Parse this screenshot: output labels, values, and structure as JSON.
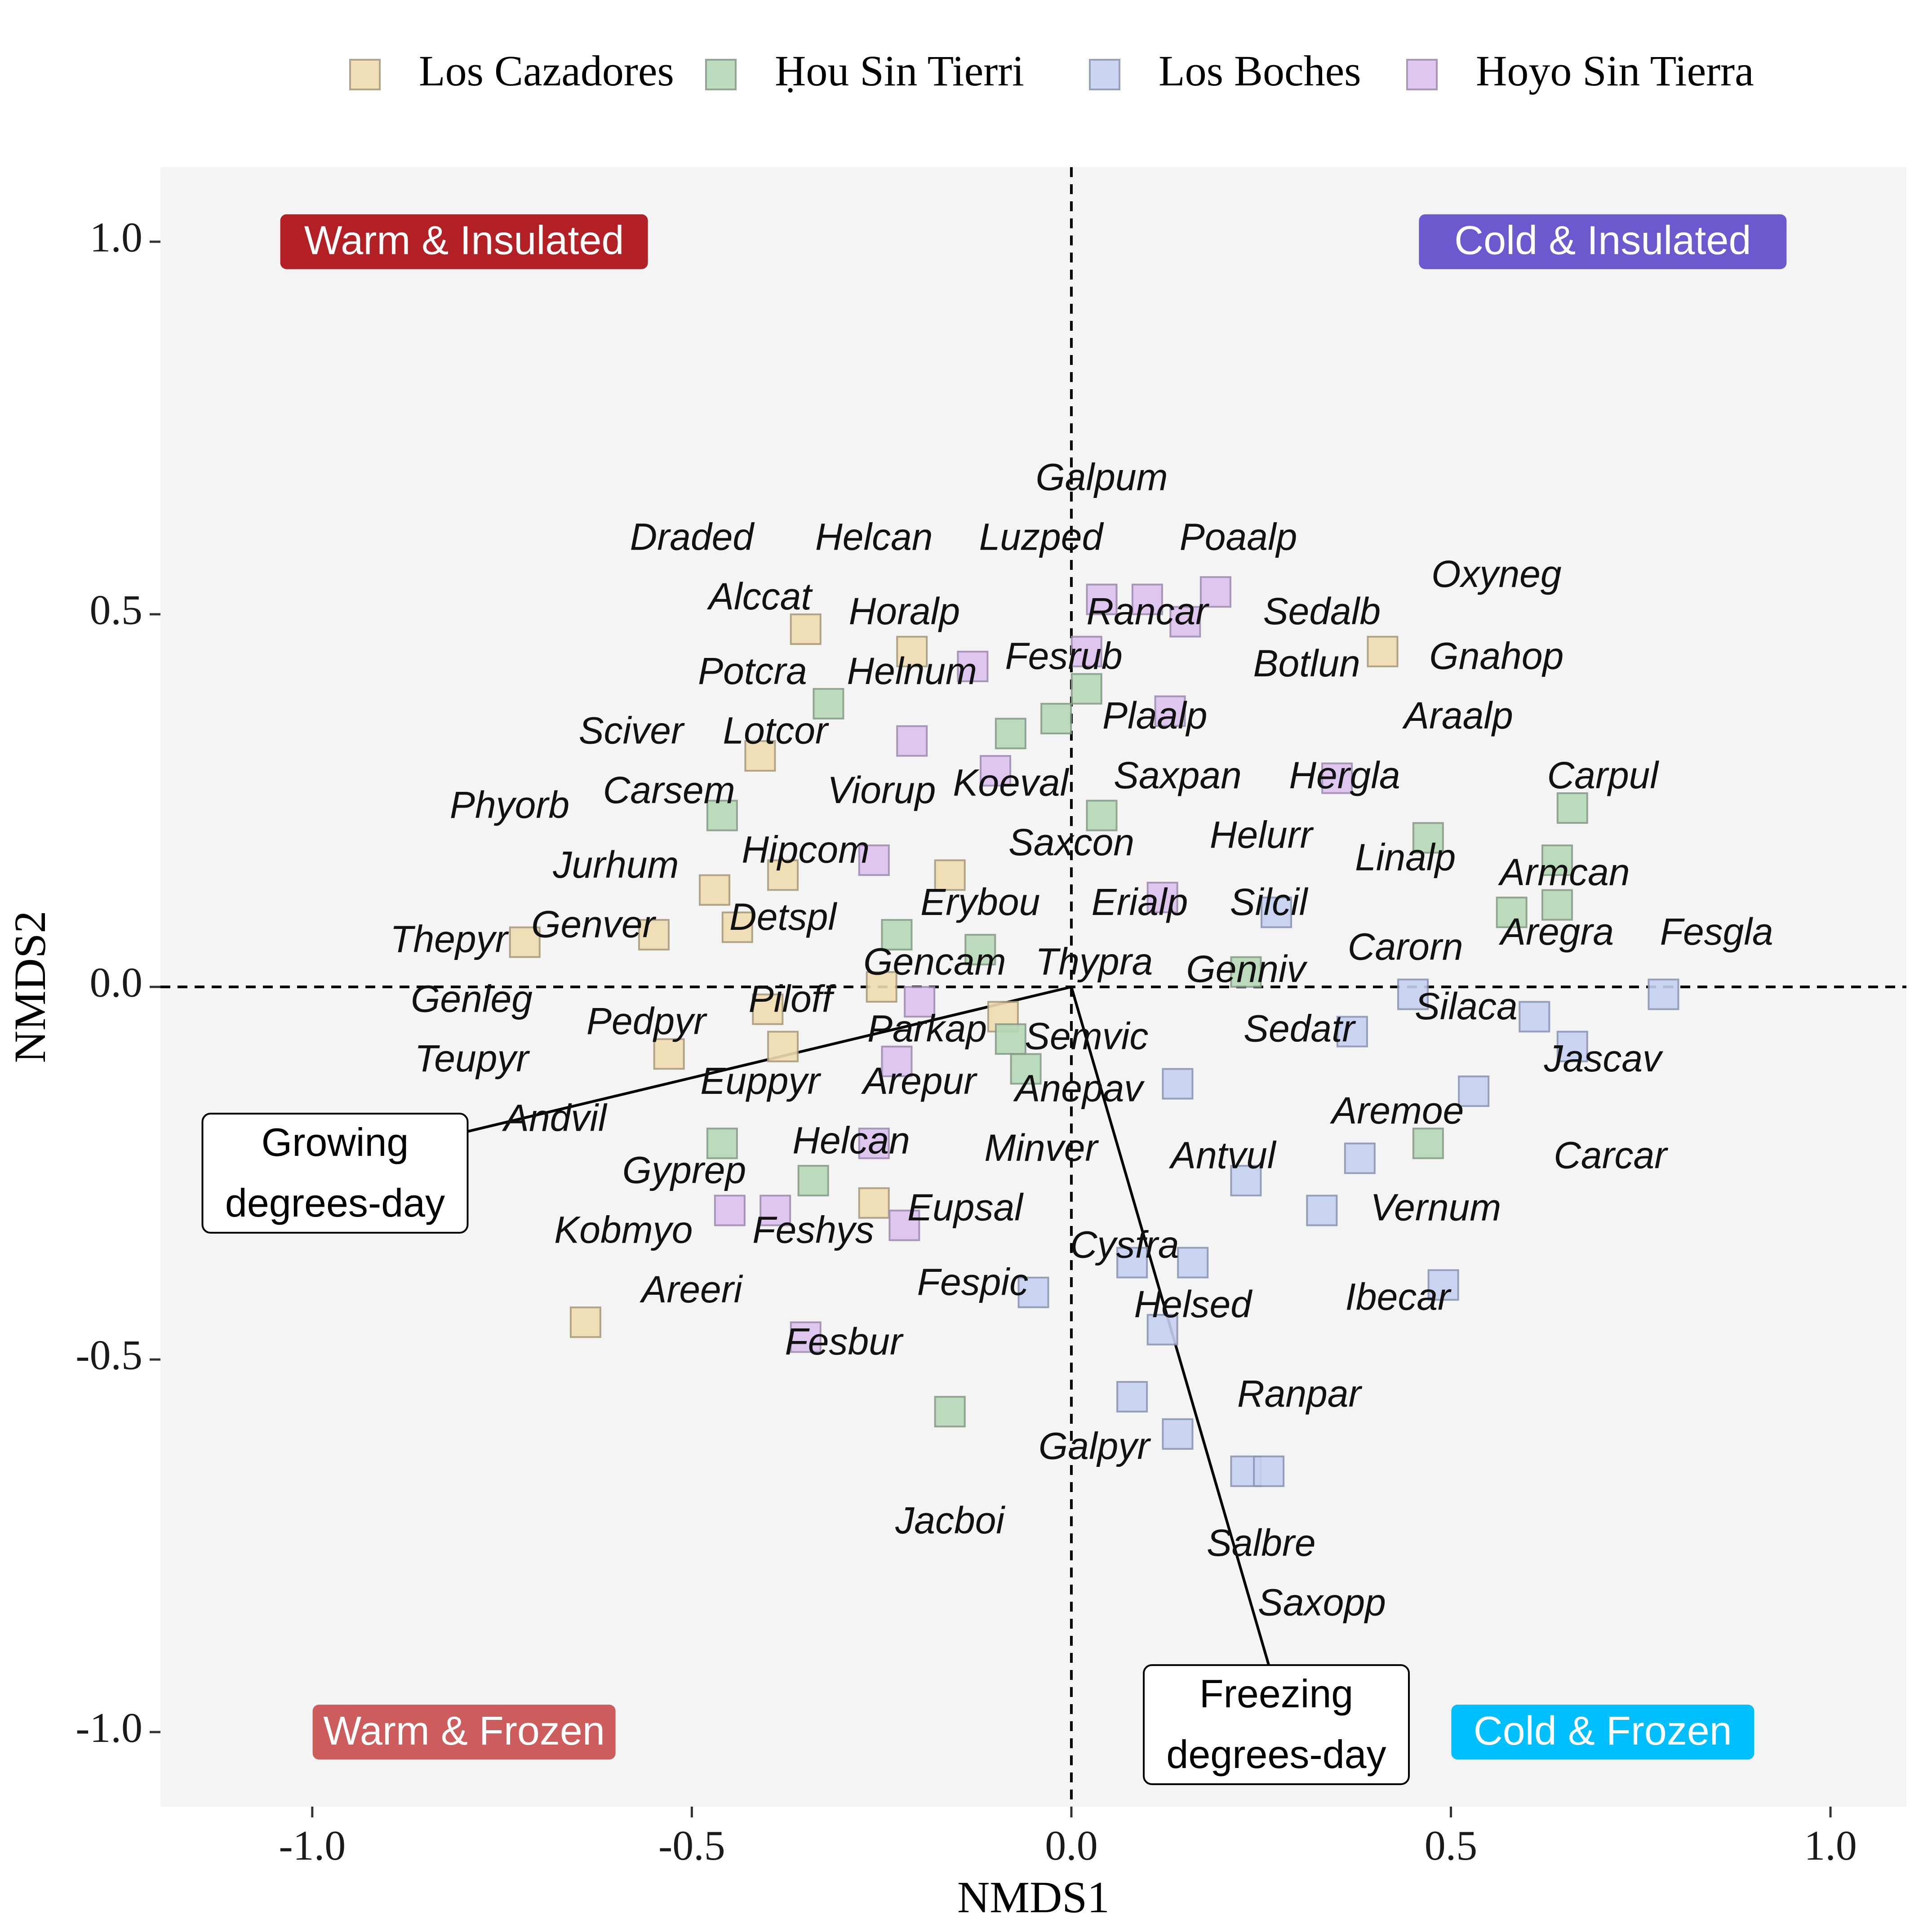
{
  "chart_data": {
    "type": "scatter",
    "xlabel": "NMDS1",
    "ylabel": "NMDS2",
    "xlim": [
      -1.2,
      1.1
    ],
    "ylim": [
      -1.1,
      1.1
    ],
    "xticks": [
      -1.0,
      -0.5,
      0.0,
      0.5,
      1.0
    ],
    "xtick_labels": [
      "-1.0",
      "-0.5",
      "0.0",
      "0.5",
      "1.0"
    ],
    "yticks": [
      -1.0,
      -0.5,
      0.0,
      0.5,
      1.0
    ],
    "ytick_labels": [
      "-1.0",
      "-0.5",
      "0.0",
      "0.5",
      "1.0"
    ],
    "grid": false,
    "legend_position": "top",
    "panel_color": "#f4f4f4",
    "series": [
      {
        "name": "Los Cazadores",
        "color": "#f0dcb0",
        "stroke": "#a89c7e",
        "points": [
          [
            -0.35,
            0.48
          ],
          [
            -0.21,
            0.45
          ],
          [
            -0.41,
            0.31
          ],
          [
            -0.47,
            0.13
          ],
          [
            -0.38,
            0.15
          ],
          [
            -0.16,
            0.15
          ],
          [
            -0.55,
            0.07
          ],
          [
            -0.44,
            0.08
          ],
          [
            -0.72,
            0.06
          ],
          [
            -0.25,
            0.0
          ],
          [
            -0.4,
            -0.03
          ],
          [
            -0.38,
            -0.08
          ],
          [
            -0.53,
            -0.09
          ],
          [
            -0.09,
            -0.04
          ],
          [
            -0.26,
            -0.29
          ],
          [
            -0.64,
            -0.45
          ],
          [
            0.41,
            0.45
          ]
        ]
      },
      {
        "name": "Ḥou Sin Tierri",
        "color": "#b6d8b6",
        "stroke": "#889c88",
        "points": [
          [
            -0.32,
            0.38
          ],
          [
            -0.08,
            0.34
          ],
          [
            -0.02,
            0.36
          ],
          [
            0.02,
            0.4
          ],
          [
            -0.46,
            0.23
          ],
          [
            0.04,
            0.23
          ],
          [
            -0.23,
            0.07
          ],
          [
            -0.12,
            0.05
          ],
          [
            -0.08,
            -0.07
          ],
          [
            -0.06,
            -0.11
          ],
          [
            -0.46,
            -0.21
          ],
          [
            -0.34,
            -0.26
          ],
          [
            -0.16,
            -0.57
          ],
          [
            0.23,
            0.02
          ],
          [
            0.47,
            0.2
          ],
          [
            0.58,
            0.1
          ],
          [
            0.64,
            0.11
          ],
          [
            0.64,
            0.17
          ],
          [
            0.66,
            0.24
          ],
          [
            0.47,
            -0.21
          ]
        ]
      },
      {
        "name": "Los Boches",
        "color": "#c6d0f0",
        "stroke": "#8c96b4",
        "points": [
          [
            0.27,
            0.1
          ],
          [
            0.45,
            -0.01
          ],
          [
            0.37,
            -0.06
          ],
          [
            0.14,
            -0.13
          ],
          [
            0.61,
            -0.04
          ],
          [
            0.66,
            -0.08
          ],
          [
            0.53,
            -0.14
          ],
          [
            0.78,
            -0.01
          ],
          [
            0.38,
            -0.23
          ],
          [
            0.23,
            -0.26
          ],
          [
            0.33,
            -0.3
          ],
          [
            0.08,
            -0.37
          ],
          [
            0.16,
            -0.37
          ],
          [
            -0.05,
            -0.41
          ],
          [
            0.49,
            -0.4
          ],
          [
            0.12,
            -0.46
          ],
          [
            0.08,
            -0.55
          ],
          [
            0.14,
            -0.6
          ],
          [
            0.23,
            -0.65
          ],
          [
            0.26,
            -0.65
          ]
        ]
      },
      {
        "name": "Hoyo Sin Tierra",
        "color": "#dcc2ee",
        "stroke": "#a08cb2",
        "points": [
          [
            0.04,
            0.52
          ],
          [
            0.1,
            0.52
          ],
          [
            0.19,
            0.53
          ],
          [
            0.15,
            0.49
          ],
          [
            0.02,
            0.45
          ],
          [
            -0.13,
            0.43
          ],
          [
            -0.21,
            0.33
          ],
          [
            -0.1,
            0.29
          ],
          [
            0.13,
            0.37
          ],
          [
            0.35,
            0.28
          ],
          [
            -0.26,
            0.17
          ],
          [
            0.12,
            0.12
          ],
          [
            -0.2,
            -0.02
          ],
          [
            -0.23,
            -0.1
          ],
          [
            -0.26,
            -0.21
          ],
          [
            -0.45,
            -0.3
          ],
          [
            -0.39,
            -0.3
          ],
          [
            -0.22,
            -0.32
          ],
          [
            -0.35,
            -0.47
          ]
        ]
      }
    ],
    "species_labels": [
      {
        "text": "Galpum",
        "x": 0.04,
        "y": 0.68
      },
      {
        "text": "Draded",
        "x": -0.5,
        "y": 0.6
      },
      {
        "text": "Helcan",
        "x": -0.26,
        "y": 0.6
      },
      {
        "text": "Luzped",
        "x": -0.04,
        "y": 0.6
      },
      {
        "text": "Poaalp",
        "x": 0.22,
        "y": 0.6
      },
      {
        "text": "Oxyneg",
        "x": 0.56,
        "y": 0.55
      },
      {
        "text": "Alccat",
        "x": -0.41,
        "y": 0.52
      },
      {
        "text": "Horalp",
        "x": -0.22,
        "y": 0.5
      },
      {
        "text": "Rancar",
        "x": 0.1,
        "y": 0.5
      },
      {
        "text": "Sedalb",
        "x": 0.33,
        "y": 0.5
      },
      {
        "text": "Fesrub",
        "x": -0.01,
        "y": 0.44
      },
      {
        "text": "Gnahop",
        "x": 0.56,
        "y": 0.44
      },
      {
        "text": "Potcra",
        "x": -0.42,
        "y": 0.42
      },
      {
        "text": "Helnum",
        "x": -0.21,
        "y": 0.42
      },
      {
        "text": "Botlun",
        "x": 0.31,
        "y": 0.43
      },
      {
        "text": "Plaalp",
        "x": 0.11,
        "y": 0.36
      },
      {
        "text": "Araalp",
        "x": 0.51,
        "y": 0.36
      },
      {
        "text": "Sciver",
        "x": -0.58,
        "y": 0.34
      },
      {
        "text": "Lotcor",
        "x": -0.39,
        "y": 0.34
      },
      {
        "text": "Saxpan",
        "x": 0.14,
        "y": 0.28
      },
      {
        "text": "Hergla",
        "x": 0.36,
        "y": 0.28
      },
      {
        "text": "Carpul",
        "x": 0.7,
        "y": 0.28
      },
      {
        "text": "Koeval",
        "x": -0.08,
        "y": 0.27
      },
      {
        "text": "Carsem",
        "x": -0.53,
        "y": 0.26
      },
      {
        "text": "Viorup",
        "x": -0.25,
        "y": 0.26
      },
      {
        "text": "Phyorb",
        "x": -0.74,
        "y": 0.24
      },
      {
        "text": "Saxcon",
        "x": 0.0,
        "y": 0.19
      },
      {
        "text": "Helurr",
        "x": 0.25,
        "y": 0.2
      },
      {
        "text": "Hipcom",
        "x": -0.35,
        "y": 0.18
      },
      {
        "text": "Linalp",
        "x": 0.44,
        "y": 0.17
      },
      {
        "text": "Jurhum",
        "x": -0.6,
        "y": 0.16
      },
      {
        "text": "Armcan",
        "x": 0.65,
        "y": 0.15
      },
      {
        "text": "Erybou",
        "x": -0.12,
        "y": 0.11
      },
      {
        "text": "Erialp",
        "x": 0.09,
        "y": 0.11
      },
      {
        "text": "Silcil",
        "x": 0.26,
        "y": 0.11
      },
      {
        "text": "Detspl",
        "x": -0.38,
        "y": 0.09
      },
      {
        "text": "Genver",
        "x": -0.63,
        "y": 0.08
      },
      {
        "text": "Thepyr",
        "x": -0.82,
        "y": 0.06
      },
      {
        "text": "Carorn",
        "x": 0.44,
        "y": 0.05
      },
      {
        "text": "Aregra",
        "x": 0.64,
        "y": 0.07
      },
      {
        "text": "Fesgla",
        "x": 0.85,
        "y": 0.07
      },
      {
        "text": "Gencam",
        "x": -0.18,
        "y": 0.03
      },
      {
        "text": "Thypra",
        "x": 0.03,
        "y": 0.03
      },
      {
        "text": "Genniv",
        "x": 0.23,
        "y": 0.02
      },
      {
        "text": "Genleg",
        "x": -0.79,
        "y": -0.02
      },
      {
        "text": "Piloff",
        "x": -0.37,
        "y": -0.02
      },
      {
        "text": "Silaca",
        "x": 0.52,
        "y": -0.03
      },
      {
        "text": "Pedpyr",
        "x": -0.56,
        "y": -0.05
      },
      {
        "text": "Parkap",
        "x": -0.19,
        "y": -0.06
      },
      {
        "text": "Semvic",
        "x": 0.02,
        "y": -0.07
      },
      {
        "text": "Sedatr",
        "x": 0.3,
        "y": -0.06
      },
      {
        "text": "Teupyr",
        "x": -0.79,
        "y": -0.1
      },
      {
        "text": "Jascav",
        "x": 0.7,
        "y": -0.1
      },
      {
        "text": "Euppyr",
        "x": -0.41,
        "y": -0.13
      },
      {
        "text": "Arepur",
        "x": -0.2,
        "y": -0.13
      },
      {
        "text": "Anepav",
        "x": 0.01,
        "y": -0.14
      },
      {
        "text": "Aremoe",
        "x": 0.43,
        "y": -0.17
      },
      {
        "text": "Andvil",
        "x": -0.68,
        "y": -0.18
      },
      {
        "text": "Helcan",
        "x": -0.29,
        "y": -0.21
      },
      {
        "text": "Minver",
        "x": -0.04,
        "y": -0.22
      },
      {
        "text": "Antvul",
        "x": 0.2,
        "y": -0.23
      },
      {
        "text": "Carcar",
        "x": 0.71,
        "y": -0.23
      },
      {
        "text": "Gyprep",
        "x": -0.51,
        "y": -0.25
      },
      {
        "text": "Eupsal",
        "x": -0.14,
        "y": -0.3
      },
      {
        "text": "Vernum",
        "x": 0.48,
        "y": -0.3
      },
      {
        "text": "Kobmyo",
        "x": -0.59,
        "y": -0.33
      },
      {
        "text": "Feshys",
        "x": -0.34,
        "y": -0.33
      },
      {
        "text": "Cysfra",
        "x": 0.07,
        "y": -0.35
      },
      {
        "text": "Fespic",
        "x": -0.13,
        "y": -0.4
      },
      {
        "text": "Areeri",
        "x": -0.5,
        "y": -0.41
      },
      {
        "text": "Helsed",
        "x": 0.16,
        "y": -0.43
      },
      {
        "text": "Ibecar",
        "x": 0.43,
        "y": -0.42
      },
      {
        "text": "Fesbur",
        "x": -0.3,
        "y": -0.48
      },
      {
        "text": "Ranpar",
        "x": 0.3,
        "y": -0.55
      },
      {
        "text": "Galpyr",
        "x": 0.03,
        "y": -0.62
      },
      {
        "text": "Jacboi",
        "x": -0.16,
        "y": -0.72
      },
      {
        "text": "Salbre",
        "x": 0.25,
        "y": -0.75
      },
      {
        "text": "Saxopp",
        "x": 0.33,
        "y": -0.83
      }
    ],
    "vectors": [
      {
        "label_lines": [
          "Growing",
          "degrees-day"
        ],
        "x": -0.82,
        "y": -0.2,
        "label_x": -0.97,
        "label_y": -0.25
      },
      {
        "label_lines": [
          "Freezing",
          "degrees-day"
        ],
        "x": 0.28,
        "y": -0.98,
        "label_x": 0.27,
        "label_y": -0.99
      }
    ],
    "quadrant_labels": [
      {
        "text": "Warm & Insulated",
        "x": -0.8,
        "y": 1.0,
        "color": "#b21f24"
      },
      {
        "text": "Cold & Insulated",
        "x": 0.7,
        "y": 1.0,
        "color": "#6a5acd"
      },
      {
        "text": "Warm & Frozen",
        "x": -0.8,
        "y": -1.0,
        "color": "#cd5c5c"
      },
      {
        "text": "Cold & Frozen",
        "x": 0.7,
        "y": -1.0,
        "color": "#00bfff"
      }
    ]
  }
}
